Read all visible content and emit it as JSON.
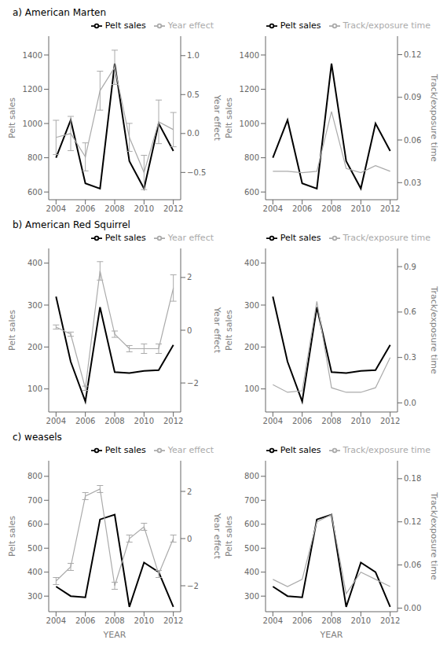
{
  "chart_data": [
    {
      "type": "line",
      "title": "a) American Marten",
      "x": [
        2004,
        2005,
        2006,
        2007,
        2008,
        2009,
        2010,
        2011,
        2012
      ],
      "xlim": [
        2003.5,
        2012.5
      ],
      "xticks": [
        2004,
        2006,
        2008,
        2010,
        2012
      ],
      "ylabel": "Pelt sales",
      "y2label": "Year effect",
      "ylim": [
        555,
        1510
      ],
      "yticks": [
        600,
        800,
        1000,
        1200,
        1400
      ],
      "y2lim": [
        -0.85,
        1.25
      ],
      "y2ticks": [
        {
          "value": -0.5,
          "label": "−0.5"
        },
        {
          "value": 0.0,
          "label": "0.0"
        },
        0.5,
        {
          "value": 1.0,
          "label": "1.0"
        }
      ],
      "legend": "upper right",
      "grid": false,
      "series": [
        {
          "name": "Pelt sales",
          "color": "#000000",
          "values": [
            800,
            1020,
            650,
            620,
            1350,
            780,
            620,
            1000,
            840
          ]
        },
        {
          "name": "Year effect",
          "color": "#aaaaaa",
          "axis": "y2",
          "values": [
            -0.05,
            0.0,
            -0.3,
            0.55,
            0.85,
            -0.05,
            -0.5,
            0.15,
            0.05
          ],
          "error": [
            0.22,
            0.22,
            0.18,
            0.25,
            0.22,
            0.18,
            0.22,
            0.28,
            0.22
          ]
        }
      ]
    },
    {
      "type": "line",
      "x": [
        2004,
        2005,
        2006,
        2007,
        2008,
        2009,
        2010,
        2011,
        2012
      ],
      "xlim": [
        2003.5,
        2012.5
      ],
      "xticks": [
        2004,
        2006,
        2008,
        2010,
        2012
      ],
      "ylabel": "Pelt sales",
      "y2label": "Track/exposure time",
      "ylim": [
        555,
        1510
      ],
      "yticks": [
        600,
        800,
        1000,
        1200,
        1400
      ],
      "y2lim": [
        0.018,
        0.133
      ],
      "y2ticks": [
        0.03,
        0.06,
        0.09,
        0.12
      ],
      "legend": "upper right",
      "grid": false,
      "series": [
        {
          "name": "Pelt sales",
          "color": "#000000",
          "values": [
            800,
            1020,
            650,
            620,
            1350,
            780,
            620,
            1000,
            840
          ]
        },
        {
          "name": "Track/exposure time",
          "color": "#aaaaaa",
          "axis": "y2",
          "values": [
            0.038,
            0.038,
            0.037,
            0.038,
            0.08,
            0.04,
            0.037,
            0.042,
            0.038
          ]
        }
      ]
    },
    {
      "type": "line",
      "title": "b) American Red Squirrel",
      "x": [
        2004,
        2005,
        2006,
        2007,
        2008,
        2009,
        2010,
        2011,
        2012
      ],
      "xlim": [
        2003.5,
        2012.5
      ],
      "xticks": [
        2004,
        2006,
        2008,
        2010,
        2012
      ],
      "ylabel": "Pelt sales",
      "y2label": "Year effect",
      "ylim": [
        45,
        435
      ],
      "yticks": [
        100,
        200,
        300,
        400
      ],
      "y2lim": [
        -3.1,
        3.1
      ],
      "y2ticks": [
        {
          "value": -2,
          "label": "−2"
        },
        0,
        2
      ],
      "legend": "upper right",
      "grid": false,
      "series": [
        {
          "name": "Pelt sales",
          "color": "#000000",
          "values": [
            320,
            165,
            70,
            295,
            140,
            138,
            143,
            145,
            205
          ]
        },
        {
          "name": "Year effect",
          "color": "#aaaaaa",
          "axis": "y2",
          "values": [
            0.12,
            -0.15,
            -2.2,
            2.25,
            -0.15,
            -0.7,
            -0.7,
            -0.7,
            1.6
          ],
          "error": [
            0.08,
            0.08,
            0.08,
            0.35,
            0.12,
            0.12,
            0.18,
            0.18,
            0.5
          ]
        }
      ]
    },
    {
      "type": "line",
      "x": [
        2004,
        2005,
        2006,
        2007,
        2008,
        2009,
        2010,
        2011,
        2012
      ],
      "xlim": [
        2003.5,
        2012.5
      ],
      "xticks": [
        2004,
        2006,
        2008,
        2010,
        2012
      ],
      "ylabel": "Pelt sales",
      "y2label": "Track/exposure time",
      "ylim": [
        45,
        435
      ],
      "yticks": [
        100,
        200,
        300,
        400
      ],
      "y2lim": [
        -0.06,
        1.02
      ],
      "y2ticks": [
        {
          "value": 0.0,
          "label": "0.0"
        },
        0.3,
        0.6,
        0.9
      ],
      "legend": "upper right",
      "grid": false,
      "series": [
        {
          "name": "Pelt sales",
          "color": "#000000",
          "values": [
            320,
            165,
            70,
            295,
            140,
            138,
            143,
            145,
            205
          ]
        },
        {
          "name": "Track/exposure time",
          "color": "#aaaaaa",
          "axis": "y2",
          "values": [
            0.12,
            0.07,
            0.08,
            0.67,
            0.1,
            0.07,
            0.07,
            0.1,
            0.3
          ]
        }
      ]
    },
    {
      "type": "line",
      "title": "c) weasels",
      "xlabel": "YEAR",
      "x": [
        2004,
        2005,
        2006,
        2007,
        2008,
        2009,
        2010,
        2011,
        2012
      ],
      "xlim": [
        2003.5,
        2012.5
      ],
      "xticks": [
        2004,
        2006,
        2008,
        2010,
        2012
      ],
      "ylabel": "Pelt sales",
      "y2label": "Year effect",
      "ylim": [
        235,
        865
      ],
      "yticks": [
        300,
        400,
        500,
        600,
        700,
        800
      ],
      "y2lim": [
        -3.1,
        3.3
      ],
      "y2ticks": [
        {
          "value": -2,
          "label": "−2"
        },
        0,
        2
      ],
      "legend": "upper right",
      "grid": false,
      "series": [
        {
          "name": "Pelt sales",
          "color": "#000000",
          "values": [
            340,
            300,
            295,
            620,
            640,
            255,
            440,
            400,
            255
          ]
        },
        {
          "name": "Year effect",
          "color": "#aaaaaa",
          "axis": "y2",
          "values": [
            -1.8,
            -1.2,
            1.8,
            2.1,
            -2.0,
            0.0,
            0.5,
            -1.5,
            0.0
          ],
          "error": [
            0.15,
            0.15,
            0.15,
            0.15,
            0.15,
            0.15,
            0.15,
            0.15,
            0.15
          ]
        }
      ]
    },
    {
      "type": "line",
      "xlabel": "YEAR",
      "x": [
        2004,
        2005,
        2006,
        2007,
        2008,
        2009,
        2010,
        2011,
        2012
      ],
      "xlim": [
        2003.5,
        2012.5
      ],
      "xticks": [
        2004,
        2006,
        2008,
        2010,
        2012
      ],
      "ylabel": "Pelt sales",
      "y2label": "Track/exposure time",
      "ylim": [
        235,
        865
      ],
      "yticks": [
        300,
        400,
        500,
        600,
        700,
        800
      ],
      "y2lim": [
        -0.005,
        0.205
      ],
      "y2ticks": [
        {
          "value": 0.0,
          "label": "0.00"
        },
        0.06,
        0.12,
        0.18
      ],
      "legend": "upper right",
      "grid": false,
      "series": [
        {
          "name": "Pelt sales",
          "color": "#000000",
          "values": [
            340,
            300,
            295,
            620,
            640,
            255,
            440,
            400,
            255
          ]
        },
        {
          "name": "Track/exposure time",
          "color": "#aaaaaa",
          "axis": "y2",
          "values": [
            0.04,
            0.03,
            0.04,
            0.12,
            0.13,
            0.02,
            0.05,
            0.04,
            0.03
          ]
        }
      ]
    }
  ]
}
